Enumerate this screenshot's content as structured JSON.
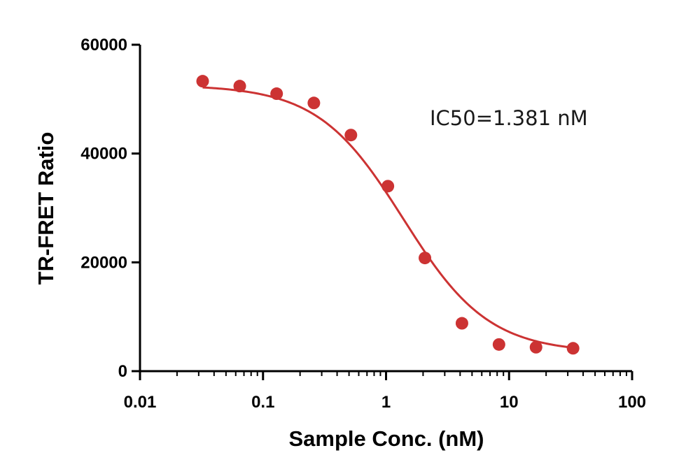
{
  "chart_data": {
    "type": "scatter",
    "xlabel": "Sample Conc. (nM)",
    "ylabel": "TR-FRET Ratio",
    "xscale": "log",
    "xlim": [
      0.01,
      100
    ],
    "ylim": [
      0,
      60000
    ],
    "x_ticks": [
      "0.01",
      "0.1",
      "1",
      "10",
      "100"
    ],
    "y_ticks": [
      "0",
      "20000",
      "40000",
      "60000"
    ],
    "grid": false,
    "annotation": "IC50=1.381 nM",
    "color": "#cc3333",
    "series": [
      {
        "x": [
          0.0323,
          0.0647,
          0.129,
          0.259,
          0.518,
          1.035,
          2.07,
          4.14,
          8.28,
          16.56,
          33.13
        ],
        "y": [
          53300,
          52400,
          51000,
          49300,
          43400,
          34000,
          20800,
          8800,
          4900,
          4400,
          4200
        ]
      }
    ],
    "fit": {
      "model": "four-parameter logistic",
      "top": 52600,
      "bottom": 3400,
      "ic50": 1.381,
      "hill": 1.25
    }
  }
}
